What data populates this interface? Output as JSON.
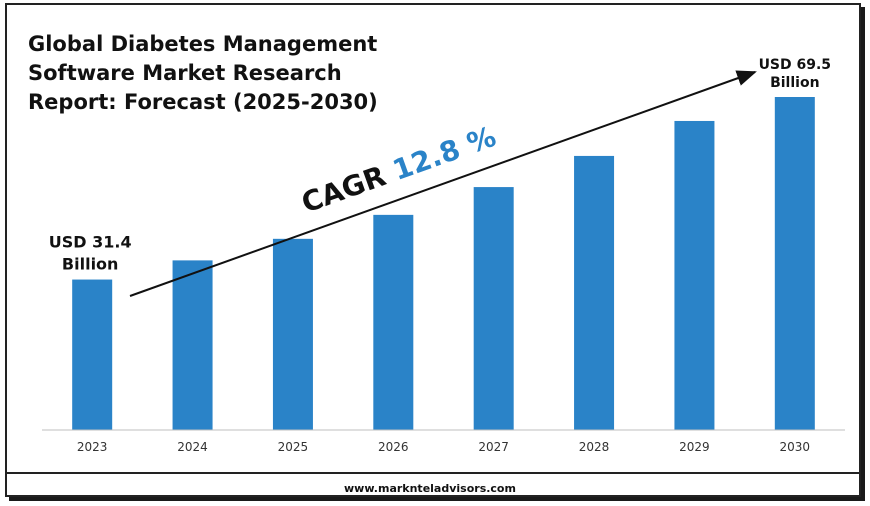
{
  "title": "Global Diabetes Management Software Market Research Report: Forecast (2025-2030)",
  "footer": "www.marknteladvisors.com",
  "cagr": {
    "prefix": "CAGR",
    "value": "12.8 %"
  },
  "colors": {
    "bar": "#2a83c8",
    "cagr_value": "#2a83c8",
    "text": "#111111",
    "axis": "#bfbfbf"
  },
  "chart_data": {
    "type": "bar",
    "title": "Global Diabetes Management Software Market Research Report: Forecast (2025-2030)",
    "categories": [
      "2023",
      "2024",
      "2025",
      "2026",
      "2027",
      "2028",
      "2029",
      "2030"
    ],
    "values": [
      31.4,
      35.4,
      39.9,
      44.9,
      50.7,
      57.2,
      64.5,
      69.5
    ],
    "unit": "USD Billion",
    "ylim": [
      0,
      75
    ],
    "grid": false,
    "annotations": [
      {
        "category": "2023",
        "text": "USD 31.4 Billion"
      },
      {
        "category": "2030",
        "text": "USD 69.5 Billion"
      }
    ]
  }
}
